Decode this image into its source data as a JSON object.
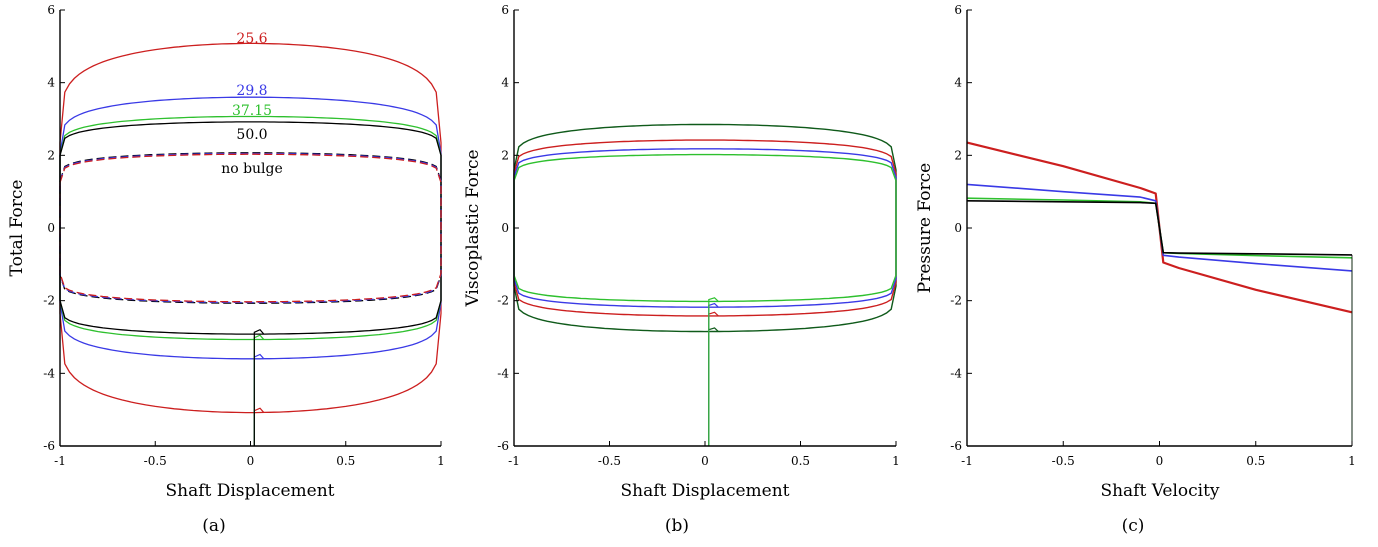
{
  "figure": {
    "colors": {
      "red": "#cc1f1f",
      "blue": "#3a3ae6",
      "green": "#2ec02e",
      "black": "#000000",
      "dark_green": "#0f5a1a"
    }
  },
  "chart_data": [
    {
      "type": "line",
      "panel": "a",
      "caption": "(a)",
      "xlabel": "Shaft Displacement",
      "ylabel": "Total Force",
      "xlim": [
        -1,
        1
      ],
      "ylim": [
        -6,
        6
      ],
      "xticks": [
        "-1",
        "-0.5",
        "0",
        "0.5",
        "1"
      ],
      "yticks": [
        "-6",
        "-4",
        "-2",
        "0",
        "2",
        "4",
        "6"
      ],
      "grid": false,
      "series": [
        {
          "label": "25.6",
          "color": "#cc1f1f",
          "style": "solid",
          "amp": 5.08,
          "edge": 2.35
        },
        {
          "label": "29.8",
          "color": "#3a3ae6",
          "style": "solid",
          "amp": 3.6,
          "edge": 2.05
        },
        {
          "label": "37.15",
          "color": "#2ec02e",
          "style": "solid",
          "amp": 3.07,
          "edge": 2.0
        },
        {
          "label": "50.0",
          "color": "#000000",
          "style": "solid",
          "amp": 2.92,
          "edge": 2.0
        },
        {
          "label": "no bulge",
          "color": "#000000",
          "style": "dashed",
          "amp": 2.07,
          "edge": 1.3
        },
        {
          "label": "",
          "color": "#3a3ae6",
          "style": "dashed",
          "amp": 2.05,
          "edge": 1.28
        },
        {
          "label": "",
          "color": "#cc1f1f",
          "style": "dashed",
          "amp": 2.03,
          "edge": 1.25
        }
      ]
    },
    {
      "type": "line",
      "panel": "b",
      "caption": "(b)",
      "xlabel": "Shaft Displacement",
      "ylabel": "Viscoplastic Force",
      "xlim": [
        -1,
        1
      ],
      "ylim": [
        -6,
        6
      ],
      "xticks": [
        "-1",
        "-0.5",
        "0",
        "0.5",
        "1"
      ],
      "yticks": [
        "-6",
        "-4",
        "-2",
        "0",
        "2",
        "4",
        "6"
      ],
      "grid": false,
      "series": [
        {
          "color": "#0f5a1a",
          "amp": 2.85,
          "edge": 1.6
        },
        {
          "color": "#cc1f1f",
          "amp": 2.42,
          "edge": 1.5
        },
        {
          "color": "#3a3ae6",
          "amp": 2.18,
          "edge": 1.4
        },
        {
          "color": "#2ec02e",
          "amp": 2.02,
          "edge": 1.3
        }
      ]
    },
    {
      "type": "line",
      "panel": "c",
      "caption": "(c)",
      "xlabel": "Shaft Velocity",
      "ylabel": "Pressure Force",
      "xlim": [
        -1,
        1
      ],
      "ylim": [
        -6,
        6
      ],
      "xticks": [
        "-1",
        "-0.5",
        "0",
        "0.5",
        "1"
      ],
      "yticks": [
        "-6",
        "-4",
        "-2",
        "0",
        "2",
        "4",
        "6"
      ],
      "grid": false,
      "series": [
        {
          "color": "#cc1f1f",
          "x": [
            -1,
            -0.5,
            -0.1,
            -0.02,
            0,
            0.02,
            0.1,
            0.5,
            1
          ],
          "y": [
            2.35,
            1.7,
            1.1,
            0.95,
            0,
            -0.95,
            -1.1,
            -1.7,
            -2.32
          ]
        },
        {
          "color": "#3a3ae6",
          "x": [
            -1,
            -0.5,
            -0.1,
            -0.02,
            0,
            0.02,
            0.1,
            0.5,
            1
          ],
          "y": [
            1.2,
            1.0,
            0.85,
            0.75,
            0,
            -0.75,
            -0.8,
            -0.98,
            -1.18
          ]
        },
        {
          "color": "#2ec02e",
          "x": [
            -1,
            -0.5,
            -0.1,
            -0.02,
            0,
            0.02,
            0.1,
            0.5,
            1
          ],
          "y": [
            0.82,
            0.77,
            0.72,
            0.68,
            0,
            -0.68,
            -0.7,
            -0.76,
            -0.82
          ]
        },
        {
          "color": "#000000",
          "x": [
            -1,
            -0.5,
            -0.1,
            -0.02,
            0,
            0.02,
            0.1,
            0.5,
            1
          ],
          "y": [
            0.75,
            0.72,
            0.7,
            0.68,
            0,
            -0.68,
            -0.69,
            -0.71,
            -0.74
          ]
        }
      ]
    }
  ]
}
